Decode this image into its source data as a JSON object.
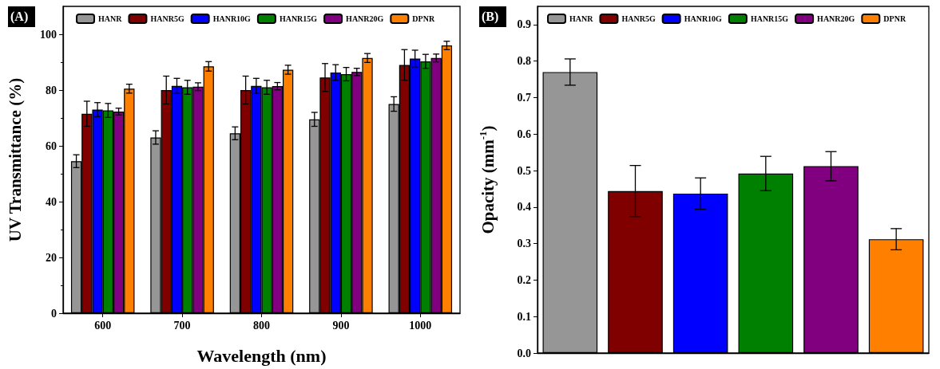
{
  "chart_data": [
    {
      "type": "bar",
      "annotations": [
        "(A)"
      ],
      "xlabel": "Wavelength (nm)",
      "ylabel": "UV Transmittance (%)",
      "categories": [
        "600",
        "700",
        "800",
        "900",
        "1000"
      ],
      "series": [
        {
          "name": "HANR",
          "color": "#969696",
          "values": [
            54.5,
            63,
            64.5,
            69.5,
            75
          ],
          "errors": [
            2.3,
            2.4,
            2.3,
            2.5,
            2.6
          ]
        },
        {
          "name": "HANR5G",
          "color": "#800000",
          "values": [
            71.5,
            80,
            80,
            84.5,
            89
          ],
          "errors": [
            4.5,
            5,
            5,
            5,
            5.5
          ]
        },
        {
          "name": "HANR10G",
          "color": "#0000ff",
          "values": [
            73,
            81.5,
            81.5,
            86.3,
            91.3
          ],
          "errors": [
            2.5,
            2.7,
            2.7,
            2.8,
            3
          ]
        },
        {
          "name": "HANR15G",
          "color": "#008000",
          "values": [
            72.7,
            81,
            81,
            85.7,
            90.3
          ],
          "errors": [
            2.5,
            2.5,
            2.5,
            2.4,
            2.5
          ]
        },
        {
          "name": "HANR20G",
          "color": "#800080",
          "values": [
            72.3,
            81.2,
            81.4,
            86.5,
            91.5
          ],
          "errors": [
            1.2,
            1.4,
            1.3,
            1.3,
            1.4
          ]
        },
        {
          "name": "DPNR",
          "color": "#ff8000",
          "values": [
            80.5,
            88.5,
            87.3,
            91.5,
            96
          ],
          "errors": [
            1.6,
            1.7,
            1.6,
            1.6,
            1.5
          ]
        }
      ],
      "ylim": [
        0,
        110
      ],
      "yticks": [
        0,
        20,
        40,
        60,
        80,
        100
      ],
      "grid": false,
      "legend": "top"
    },
    {
      "type": "bar",
      "annotations": [
        "(B)"
      ],
      "ylabel": "Opacity (mm$^{-1}$)",
      "categories": [
        null,
        null,
        null,
        null,
        null,
        null
      ],
      "tick_labels": "y",
      "series": [
        {
          "name": "HANR",
          "color": "#969696",
          "values": [
            0.77,
            null,
            null,
            null,
            null,
            null
          ],
          "errors": [
            0.036,
            null,
            null,
            null,
            null,
            null
          ]
        },
        {
          "name": "HANR5G",
          "color": "#800000",
          "values": [
            null,
            0.444,
            null,
            null,
            null,
            null
          ],
          "errors": [
            null,
            0.07,
            null,
            null,
            null,
            null
          ]
        },
        {
          "name": "HANR10G",
          "color": "#0000ff",
          "values": [
            null,
            null,
            0.437,
            null,
            null,
            null
          ],
          "errors": [
            null,
            null,
            0.043,
            null,
            null,
            null
          ]
        },
        {
          "name": "HANR15G",
          "color": "#008000",
          "values": [
            null,
            null,
            null,
            0.492,
            null,
            null
          ],
          "errors": [
            null,
            null,
            null,
            0.047,
            null,
            null
          ]
        },
        {
          "name": "HANR20G",
          "color": "#800080",
          "values": [
            null,
            null,
            null,
            null,
            0.512,
            null
          ],
          "errors": [
            null,
            null,
            null,
            null,
            0.04,
            null
          ]
        },
        {
          "name": "DPNR",
          "color": "#ff8000",
          "values": [
            null,
            null,
            null,
            null,
            null,
            0.312
          ],
          "errors": [
            null,
            null,
            null,
            null,
            null,
            0.029
          ]
        }
      ],
      "ylim": [
        0,
        0.95
      ],
      "yticks": [
        {
          "value": 0,
          "label": "0.0"
        },
        0.1,
        0.2,
        0.3,
        0.4,
        0.5,
        0.6,
        0.7,
        0.8,
        0.9
      ],
      "grid": false,
      "legend": "top"
    }
  ]
}
